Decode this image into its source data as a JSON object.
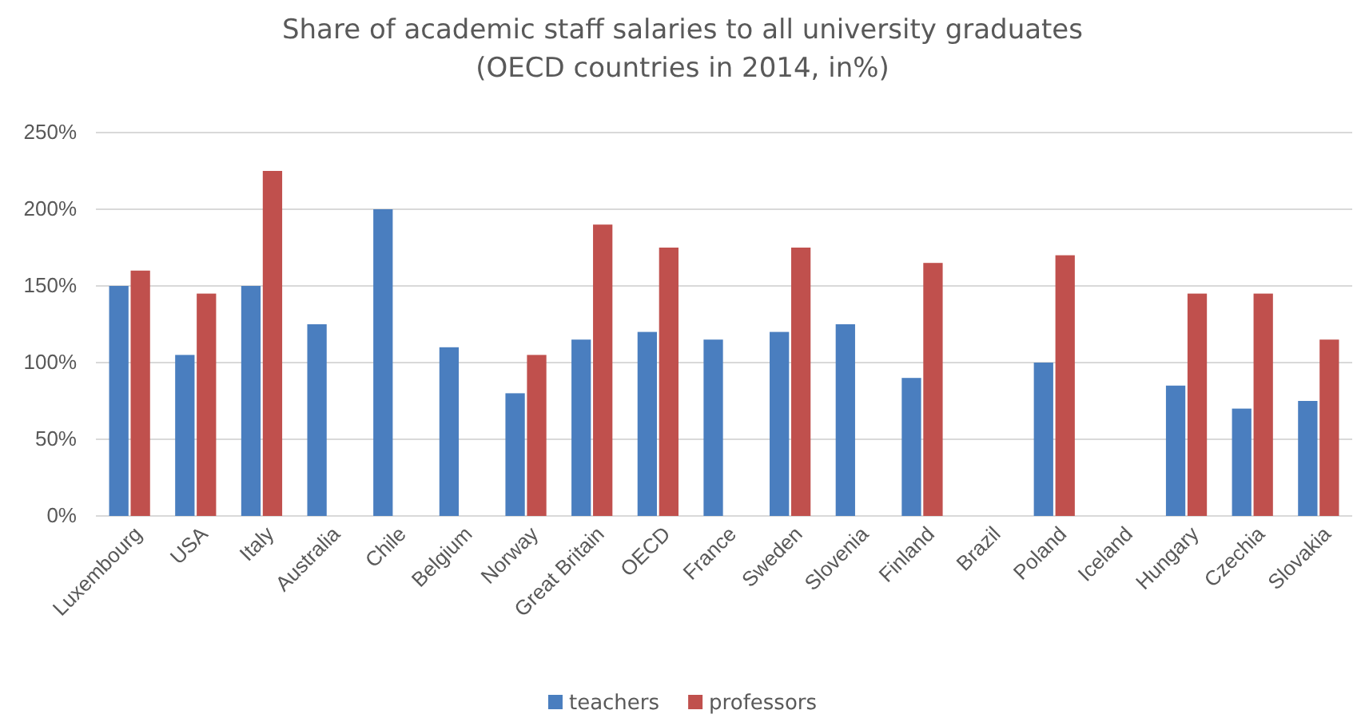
{
  "chart_data": {
    "type": "bar",
    "title": "Share of academic staff salaries to all university graduates",
    "subtitle": "(OECD countries in 2014, in%)",
    "categories": [
      "Luxembourg",
      "USA",
      "Italy",
      "Australia",
      "Chile",
      "Belgium",
      "Norway",
      "Great Britain",
      "OECD",
      "France",
      "Sweden",
      "Slovenia",
      "Finland",
      "Brazil",
      "Poland",
      "Iceland",
      "Hungary",
      "Czechia",
      "Slovakia"
    ],
    "series": [
      {
        "name": "teachers",
        "color": "#4a7ebf",
        "values": [
          150,
          105,
          150,
          125,
          200,
          110,
          80,
          115,
          120,
          115,
          120,
          125,
          90,
          null,
          100,
          null,
          85,
          70,
          75
        ]
      },
      {
        "name": "professors",
        "color": "#c0504d",
        "values": [
          160,
          145,
          225,
          null,
          null,
          null,
          105,
          190,
          175,
          null,
          175,
          null,
          165,
          null,
          170,
          null,
          145,
          145,
          115
        ]
      }
    ],
    "ylim": [
      0,
      250
    ],
    "yticks": [
      {
        "value": 0,
        "label": "0%"
      },
      {
        "value": 50,
        "label": "50%"
      },
      {
        "value": 100,
        "label": "100%"
      },
      {
        "value": 150,
        "label": "150%"
      },
      {
        "value": 200,
        "label": "200%"
      },
      {
        "value": 250,
        "label": "250%"
      }
    ],
    "grid": "y",
    "legend": "bottom"
  }
}
